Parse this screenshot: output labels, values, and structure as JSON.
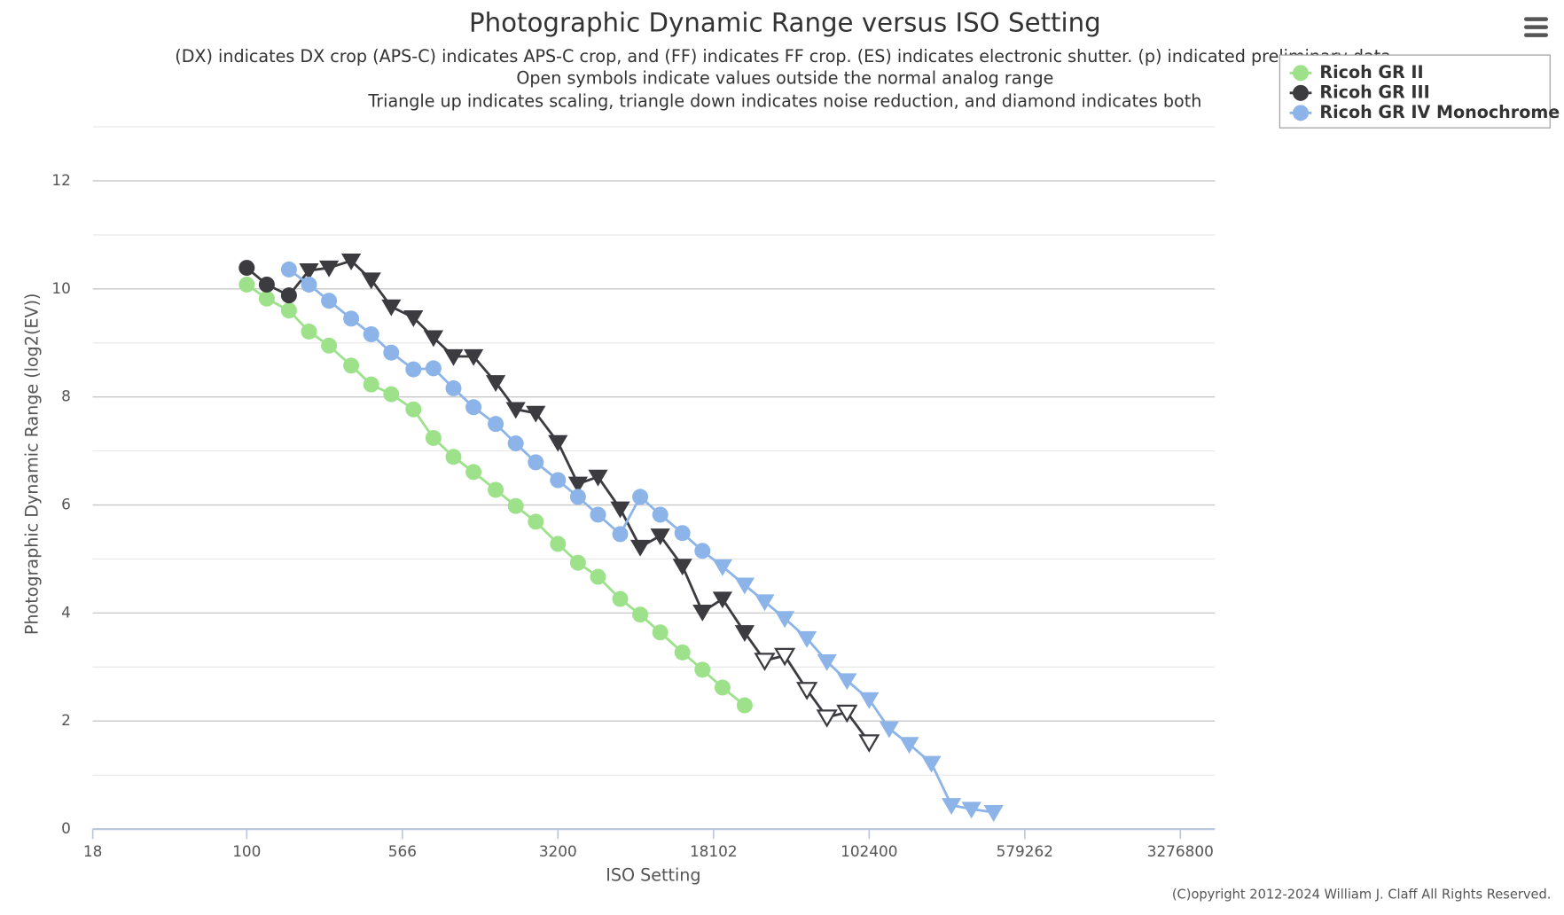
{
  "chart_data": {
    "type": "line",
    "title": "Photographic Dynamic Range versus ISO Setting",
    "subtitle": [
      "(DX) indicates DX crop (APS-C) indicates APS-C crop, and (FF) indicates FF crop. (ES) indicates electronic shutter. (p) indicated preliminary data",
      "Open symbols indicate values outside the normal analog range",
      "Triangle up indicates scaling, triangle down indicates noise reduction, and diamond indicates both"
    ],
    "x_label": "ISO Setting",
    "y_label": "Photographic Dynamic Range (log2(EV))",
    "copyright": "(C)opyright 2012-2024 William J. Claff All Rights Reserved.",
    "x_log": true,
    "xlim": [
      18,
      4814460
    ],
    "xticks": [
      18,
      100,
      566,
      3200,
      18102,
      102400,
      579262,
      3276800
    ],
    "ylim": [
      0,
      13
    ],
    "yticks": [
      0,
      2,
      4,
      6,
      8,
      10,
      12
    ],
    "y_minor_ticks": [
      1,
      3,
      5,
      7,
      9,
      11,
      13
    ],
    "grid": true,
    "legend": "top-right",
    "series": [
      {
        "name": "Ricoh GR II",
        "color": "#9de28b",
        "x": [
          100,
          125,
          160,
          200,
          250,
          320,
          400,
          500,
          640,
          800,
          1000,
          1250,
          1600,
          2000,
          2500,
          3200,
          4000,
          5000,
          6400,
          8000,
          10000,
          12800,
          16000,
          20000,
          25600
        ],
        "values": [
          10.08,
          9.82,
          9.6,
          9.21,
          8.95,
          8.58,
          8.23,
          8.05,
          7.77,
          7.24,
          6.89,
          6.61,
          6.28,
          5.98,
          5.69,
          5.28,
          4.93,
          4.67,
          4.26,
          3.97,
          3.64,
          3.27,
          2.95,
          2.62,
          2.29
        ],
        "markers": [
          "circle",
          "circle",
          "circle",
          "circle",
          "circle",
          "circle",
          "circle",
          "circle",
          "circle",
          "circle",
          "circle",
          "circle",
          "circle",
          "circle",
          "circle",
          "circle",
          "circle",
          "circle",
          "circle",
          "circle",
          "circle",
          "circle",
          "circle",
          "circle",
          "circle"
        ]
      },
      {
        "name": "Ricoh GR III",
        "color": "#3b3b40",
        "x": [
          100,
          125,
          160,
          200,
          250,
          320,
          400,
          500,
          640,
          800,
          1000,
          1250,
          1600,
          2000,
          2500,
          3200,
          4000,
          5000,
          6400,
          8000,
          10000,
          12800,
          16000,
          20000,
          25600,
          32000,
          40000,
          51200,
          64000,
          80000,
          102400
        ],
        "values": [
          10.39,
          10.08,
          9.88,
          10.34,
          10.39,
          10.52,
          10.17,
          9.67,
          9.47,
          9.1,
          8.75,
          8.75,
          8.27,
          7.77,
          7.7,
          7.16,
          6.39,
          6.52,
          5.93,
          5.22,
          5.43,
          4.87,
          4.02,
          4.26,
          3.64,
          3.12,
          3.21,
          2.58,
          2.07,
          2.16,
          1.61
        ],
        "markers": [
          "circle",
          "circle",
          "circle",
          "triangle-down",
          "triangle-down",
          "triangle-down",
          "triangle-down",
          "triangle-down",
          "triangle-down",
          "triangle-down",
          "triangle-down",
          "triangle-down",
          "triangle-down",
          "triangle-down",
          "triangle-down",
          "triangle-down",
          "triangle-down",
          "triangle-down",
          "triangle-down",
          "triangle-down",
          "triangle-down",
          "triangle-down",
          "triangle-down",
          "triangle-down",
          "triangle-down",
          "triangle-down-open",
          "triangle-down-open",
          "triangle-down-open",
          "triangle-down-open",
          "triangle-down-open",
          "triangle-down-open"
        ]
      },
      {
        "name": "Ricoh GR IV Monochrome",
        "color": "#8cb4e8",
        "x": [
          160,
          200,
          250,
          320,
          400,
          500,
          640,
          800,
          1000,
          1250,
          1600,
          2000,
          2500,
          3200,
          4000,
          5000,
          6400,
          8000,
          10000,
          12800,
          16000,
          20000,
          25600,
          32000,
          40000,
          51200,
          64000,
          80000,
          102400,
          128000,
          160000,
          204800,
          256000,
          320000,
          409600
        ],
        "values": [
          10.36,
          10.08,
          9.78,
          9.45,
          9.16,
          8.82,
          8.51,
          8.53,
          8.16,
          7.81,
          7.5,
          7.14,
          6.79,
          6.46,
          6.15,
          5.82,
          5.46,
          6.15,
          5.82,
          5.48,
          5.15,
          4.86,
          4.52,
          4.21,
          3.9,
          3.53,
          3.1,
          2.75,
          2.4,
          1.86,
          1.57,
          1.22,
          0.44,
          0.37,
          0.31
        ],
        "markers": [
          "circle",
          "circle",
          "circle",
          "circle",
          "circle",
          "circle",
          "circle",
          "circle",
          "circle",
          "circle",
          "circle",
          "circle",
          "circle",
          "circle",
          "circle",
          "circle",
          "circle",
          "circle",
          "circle",
          "circle",
          "circle",
          "triangle-down",
          "triangle-down",
          "triangle-down",
          "triangle-down",
          "triangle-down",
          "triangle-down",
          "triangle-down",
          "triangle-down",
          "triangle-down",
          "triangle-down",
          "triangle-down",
          "triangle-down",
          "triangle-down",
          "triangle-down"
        ]
      }
    ]
  }
}
